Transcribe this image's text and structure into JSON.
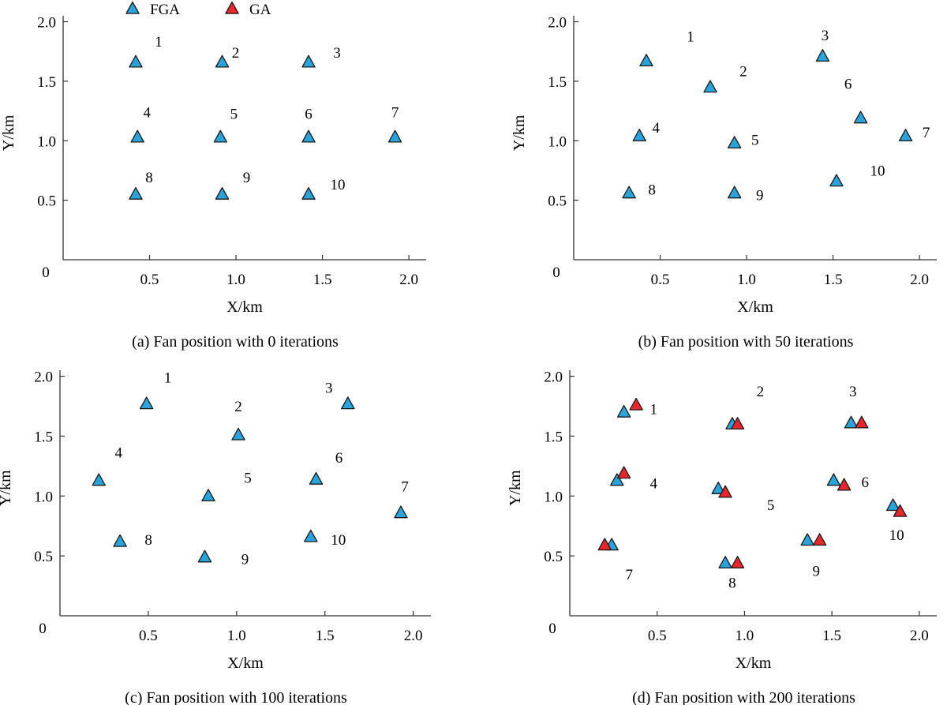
{
  "legend": {
    "placement": "top",
    "items": [
      {
        "label": "FGA",
        "color": "#29a3d9"
      },
      {
        "label": "GA",
        "color": "#e8262b"
      }
    ]
  },
  "colors": {
    "fga": "#29a3d9",
    "ga": "#e8262b",
    "axis": "#333333",
    "marker_edge": "#1a1a1a"
  },
  "chart_data": [
    {
      "type": "scatter",
      "caption": "(a) Fan position with 0 iterations",
      "xlabel": "X/km",
      "ylabel": "Y/km",
      "xlim": [
        0,
        2.1
      ],
      "ylim": [
        0,
        2.05
      ],
      "xticks": [
        "0.5",
        "1.0",
        "1.5",
        "2.0"
      ],
      "yticks": [
        "0.5",
        "1.0",
        "1.5",
        "2.0"
      ],
      "origin_label": "0",
      "grid": false,
      "series": [
        {
          "name": "FGA",
          "points": [
            {
              "label": "1",
              "x": 0.42,
              "y": 1.66
            },
            {
              "label": "2",
              "x": 0.92,
              "y": 1.66
            },
            {
              "label": "3",
              "x": 1.42,
              "y": 1.66
            },
            {
              "label": "4",
              "x": 0.43,
              "y": 1.03
            },
            {
              "label": "5",
              "x": 0.91,
              "y": 1.03
            },
            {
              "label": "6",
              "x": 1.42,
              "y": 1.03
            },
            {
              "label": "7",
              "x": 1.92,
              "y": 1.03
            },
            {
              "label": "8",
              "x": 0.42,
              "y": 0.55
            },
            {
              "label": "9",
              "x": 0.92,
              "y": 0.55
            },
            {
              "label": "10",
              "x": 1.42,
              "y": 0.55
            }
          ]
        }
      ]
    },
    {
      "type": "scatter",
      "caption": "(b) Fan position with 50 iterations",
      "xlabel": "X/km",
      "ylabel": "Y/km",
      "xlim": [
        0,
        2.1
      ],
      "ylim": [
        0,
        2.05
      ],
      "xticks": [
        "0.5",
        "1.0",
        "1.5",
        "2.0"
      ],
      "yticks": [
        "0.5",
        "1.0",
        "1.5",
        "2.0"
      ],
      "origin_label": "0",
      "grid": false,
      "series": [
        {
          "name": "FGA",
          "points": [
            {
              "label": "1",
              "x": 0.42,
              "y": 1.67
            },
            {
              "label": "2",
              "x": 0.79,
              "y": 1.45
            },
            {
              "label": "3",
              "x": 1.44,
              "y": 1.71
            },
            {
              "label": "4",
              "x": 0.38,
              "y": 1.04
            },
            {
              "label": "5",
              "x": 0.93,
              "y": 0.98
            },
            {
              "label": "6",
              "x": 1.66,
              "y": 1.19
            },
            {
              "label": "7",
              "x": 1.92,
              "y": 1.04
            },
            {
              "label": "8",
              "x": 0.32,
              "y": 0.56
            },
            {
              "label": "9",
              "x": 0.93,
              "y": 0.56
            },
            {
              "label": "10",
              "x": 1.52,
              "y": 0.66
            }
          ]
        }
      ]
    },
    {
      "type": "scatter",
      "caption": "(c) Fan position with 100 iterations",
      "xlabel": "X/km",
      "ylabel": "Y/km",
      "xlim": [
        0,
        2.1
      ],
      "ylim": [
        0,
        2.05
      ],
      "xticks": [
        "0.5",
        "1.0",
        "1.5",
        "2.0"
      ],
      "yticks": [
        "0.5",
        "1.0",
        "1.5",
        "2.0"
      ],
      "origin_label": "0",
      "grid": false,
      "series": [
        {
          "name": "FGA",
          "points": [
            {
              "label": "1",
              "x": 0.49,
              "y": 1.77
            },
            {
              "label": "2",
              "x": 1.01,
              "y": 1.51
            },
            {
              "label": "3",
              "x": 1.63,
              "y": 1.77
            },
            {
              "label": "4",
              "x": 0.22,
              "y": 1.13
            },
            {
              "label": "5",
              "x": 0.84,
              "y": 1.0
            },
            {
              "label": "6",
              "x": 1.45,
              "y": 1.14
            },
            {
              "label": "7",
              "x": 1.93,
              "y": 0.86
            },
            {
              "label": "8",
              "x": 0.34,
              "y": 0.62
            },
            {
              "label": "9",
              "x": 0.82,
              "y": 0.49
            },
            {
              "label": "10",
              "x": 1.42,
              "y": 0.66
            }
          ]
        }
      ]
    },
    {
      "type": "scatter",
      "caption": "(d) Fan position with 200 iterations",
      "xlabel": "X/km",
      "ylabel": "Y/km",
      "xlim": [
        0,
        2.1
      ],
      "ylim": [
        0,
        2.05
      ],
      "xticks": [
        "0.5",
        "1.0",
        "1.5",
        "2.0"
      ],
      "yticks": [
        "0.5",
        "1.0",
        "1.5",
        "2.0"
      ],
      "origin_label": "0",
      "grid": false,
      "series": [
        {
          "name": "FGA",
          "points": [
            {
              "label": "1",
              "x": 0.31,
              "y": 1.7
            },
            {
              "label": "2",
              "x": 0.93,
              "y": 1.6
            },
            {
              "label": "3",
              "x": 1.61,
              "y": 1.61
            },
            {
              "label": "4",
              "x": 0.27,
              "y": 1.13
            },
            {
              "label": "5",
              "x": 0.85,
              "y": 1.06
            },
            {
              "label": "6",
              "x": 1.51,
              "y": 1.13
            },
            {
              "label": "7",
              "x": 0.24,
              "y": 0.59
            },
            {
              "label": "8",
              "x": 0.89,
              "y": 0.44
            },
            {
              "label": "9",
              "x": 1.36,
              "y": 0.63
            },
            {
              "label": "10",
              "x": 1.85,
              "y": 0.92
            }
          ]
        },
        {
          "name": "GA",
          "points": [
            {
              "label": "1",
              "x": 0.38,
              "y": 1.76
            },
            {
              "label": "2",
              "x": 0.96,
              "y": 1.6
            },
            {
              "label": "3",
              "x": 1.67,
              "y": 1.61
            },
            {
              "label": "4",
              "x": 0.31,
              "y": 1.19
            },
            {
              "label": "5",
              "x": 0.89,
              "y": 1.03
            },
            {
              "label": "6",
              "x": 1.57,
              "y": 1.09
            },
            {
              "label": "7",
              "x": 0.2,
              "y": 0.59
            },
            {
              "label": "8",
              "x": 0.96,
              "y": 0.44
            },
            {
              "label": "9",
              "x": 1.43,
              "y": 0.63
            },
            {
              "label": "10",
              "x": 1.89,
              "y": 0.87
            }
          ]
        }
      ],
      "point_labels": [
        {
          "text": "1",
          "x": 0.48,
          "y": 1.73
        },
        {
          "text": "2",
          "x": 1.09,
          "y": 1.88
        },
        {
          "text": "3",
          "x": 1.62,
          "y": 1.88
        },
        {
          "text": "4",
          "x": 0.48,
          "y": 1.11
        },
        {
          "text": "5",
          "x": 1.15,
          "y": 0.93
        },
        {
          "text": "6",
          "x": 1.69,
          "y": 1.12
        },
        {
          "text": "7",
          "x": 0.34,
          "y": 0.35
        },
        {
          "text": "8",
          "x": 0.93,
          "y": 0.28
        },
        {
          "text": "9",
          "x": 1.41,
          "y": 0.38
        },
        {
          "text": "10",
          "x": 1.87,
          "y": 0.68
        }
      ]
    }
  ]
}
